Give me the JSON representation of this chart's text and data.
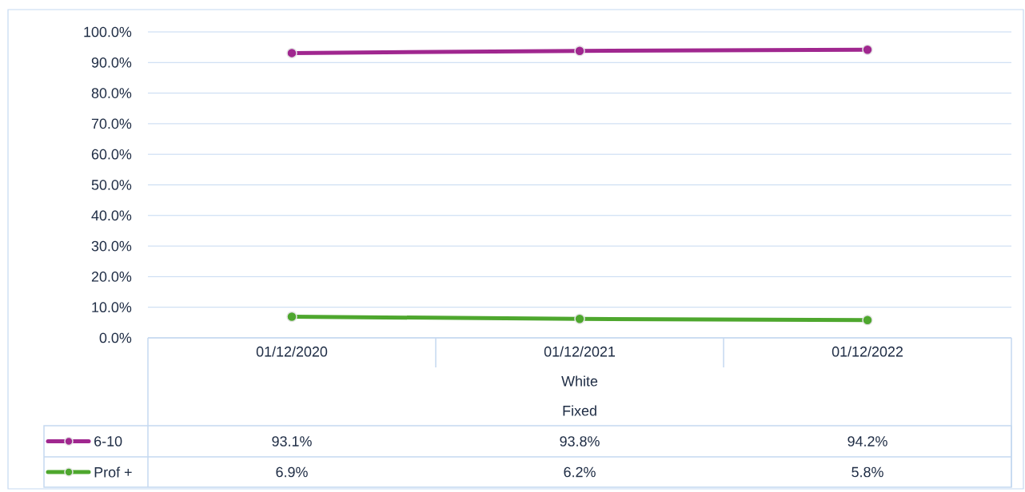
{
  "chart_data": {
    "type": "line",
    "categories": [
      "01/12/2020",
      "01/12/2021",
      "01/12/2022"
    ],
    "annotations": [
      "White",
      "Fixed"
    ],
    "series": [
      {
        "name": "6-10",
        "color": "#a0278f",
        "values": [
          93.1,
          93.8,
          94.2
        ],
        "value_labels": [
          "93.1%",
          "93.8%",
          "94.2%"
        ]
      },
      {
        "name": "Prof +",
        "color": "#4ea72e",
        "values": [
          6.9,
          6.2,
          5.8
        ],
        "value_labels": [
          "6.9%",
          "6.2%",
          "5.8%"
        ]
      }
    ],
    "ylim": [
      0,
      100
    ],
    "yticks": [
      {
        "value": 0,
        "label": "0.0%"
      },
      {
        "value": 10,
        "label": "10.0%"
      },
      {
        "value": 20,
        "label": "20.0%"
      },
      {
        "value": 30,
        "label": "30.0%"
      },
      {
        "value": 40,
        "label": "40.0%"
      },
      {
        "value": 50,
        "label": "50.0%"
      },
      {
        "value": 60,
        "label": "60.0%"
      },
      {
        "value": 70,
        "label": "70.0%"
      },
      {
        "value": 80,
        "label": "80.0%"
      },
      {
        "value": 90,
        "label": "90.0%"
      },
      {
        "value": 100,
        "label": "100.0%"
      }
    ],
    "grid": "y",
    "legend": "bottom",
    "marker": "circle",
    "line_style": "solid"
  }
}
